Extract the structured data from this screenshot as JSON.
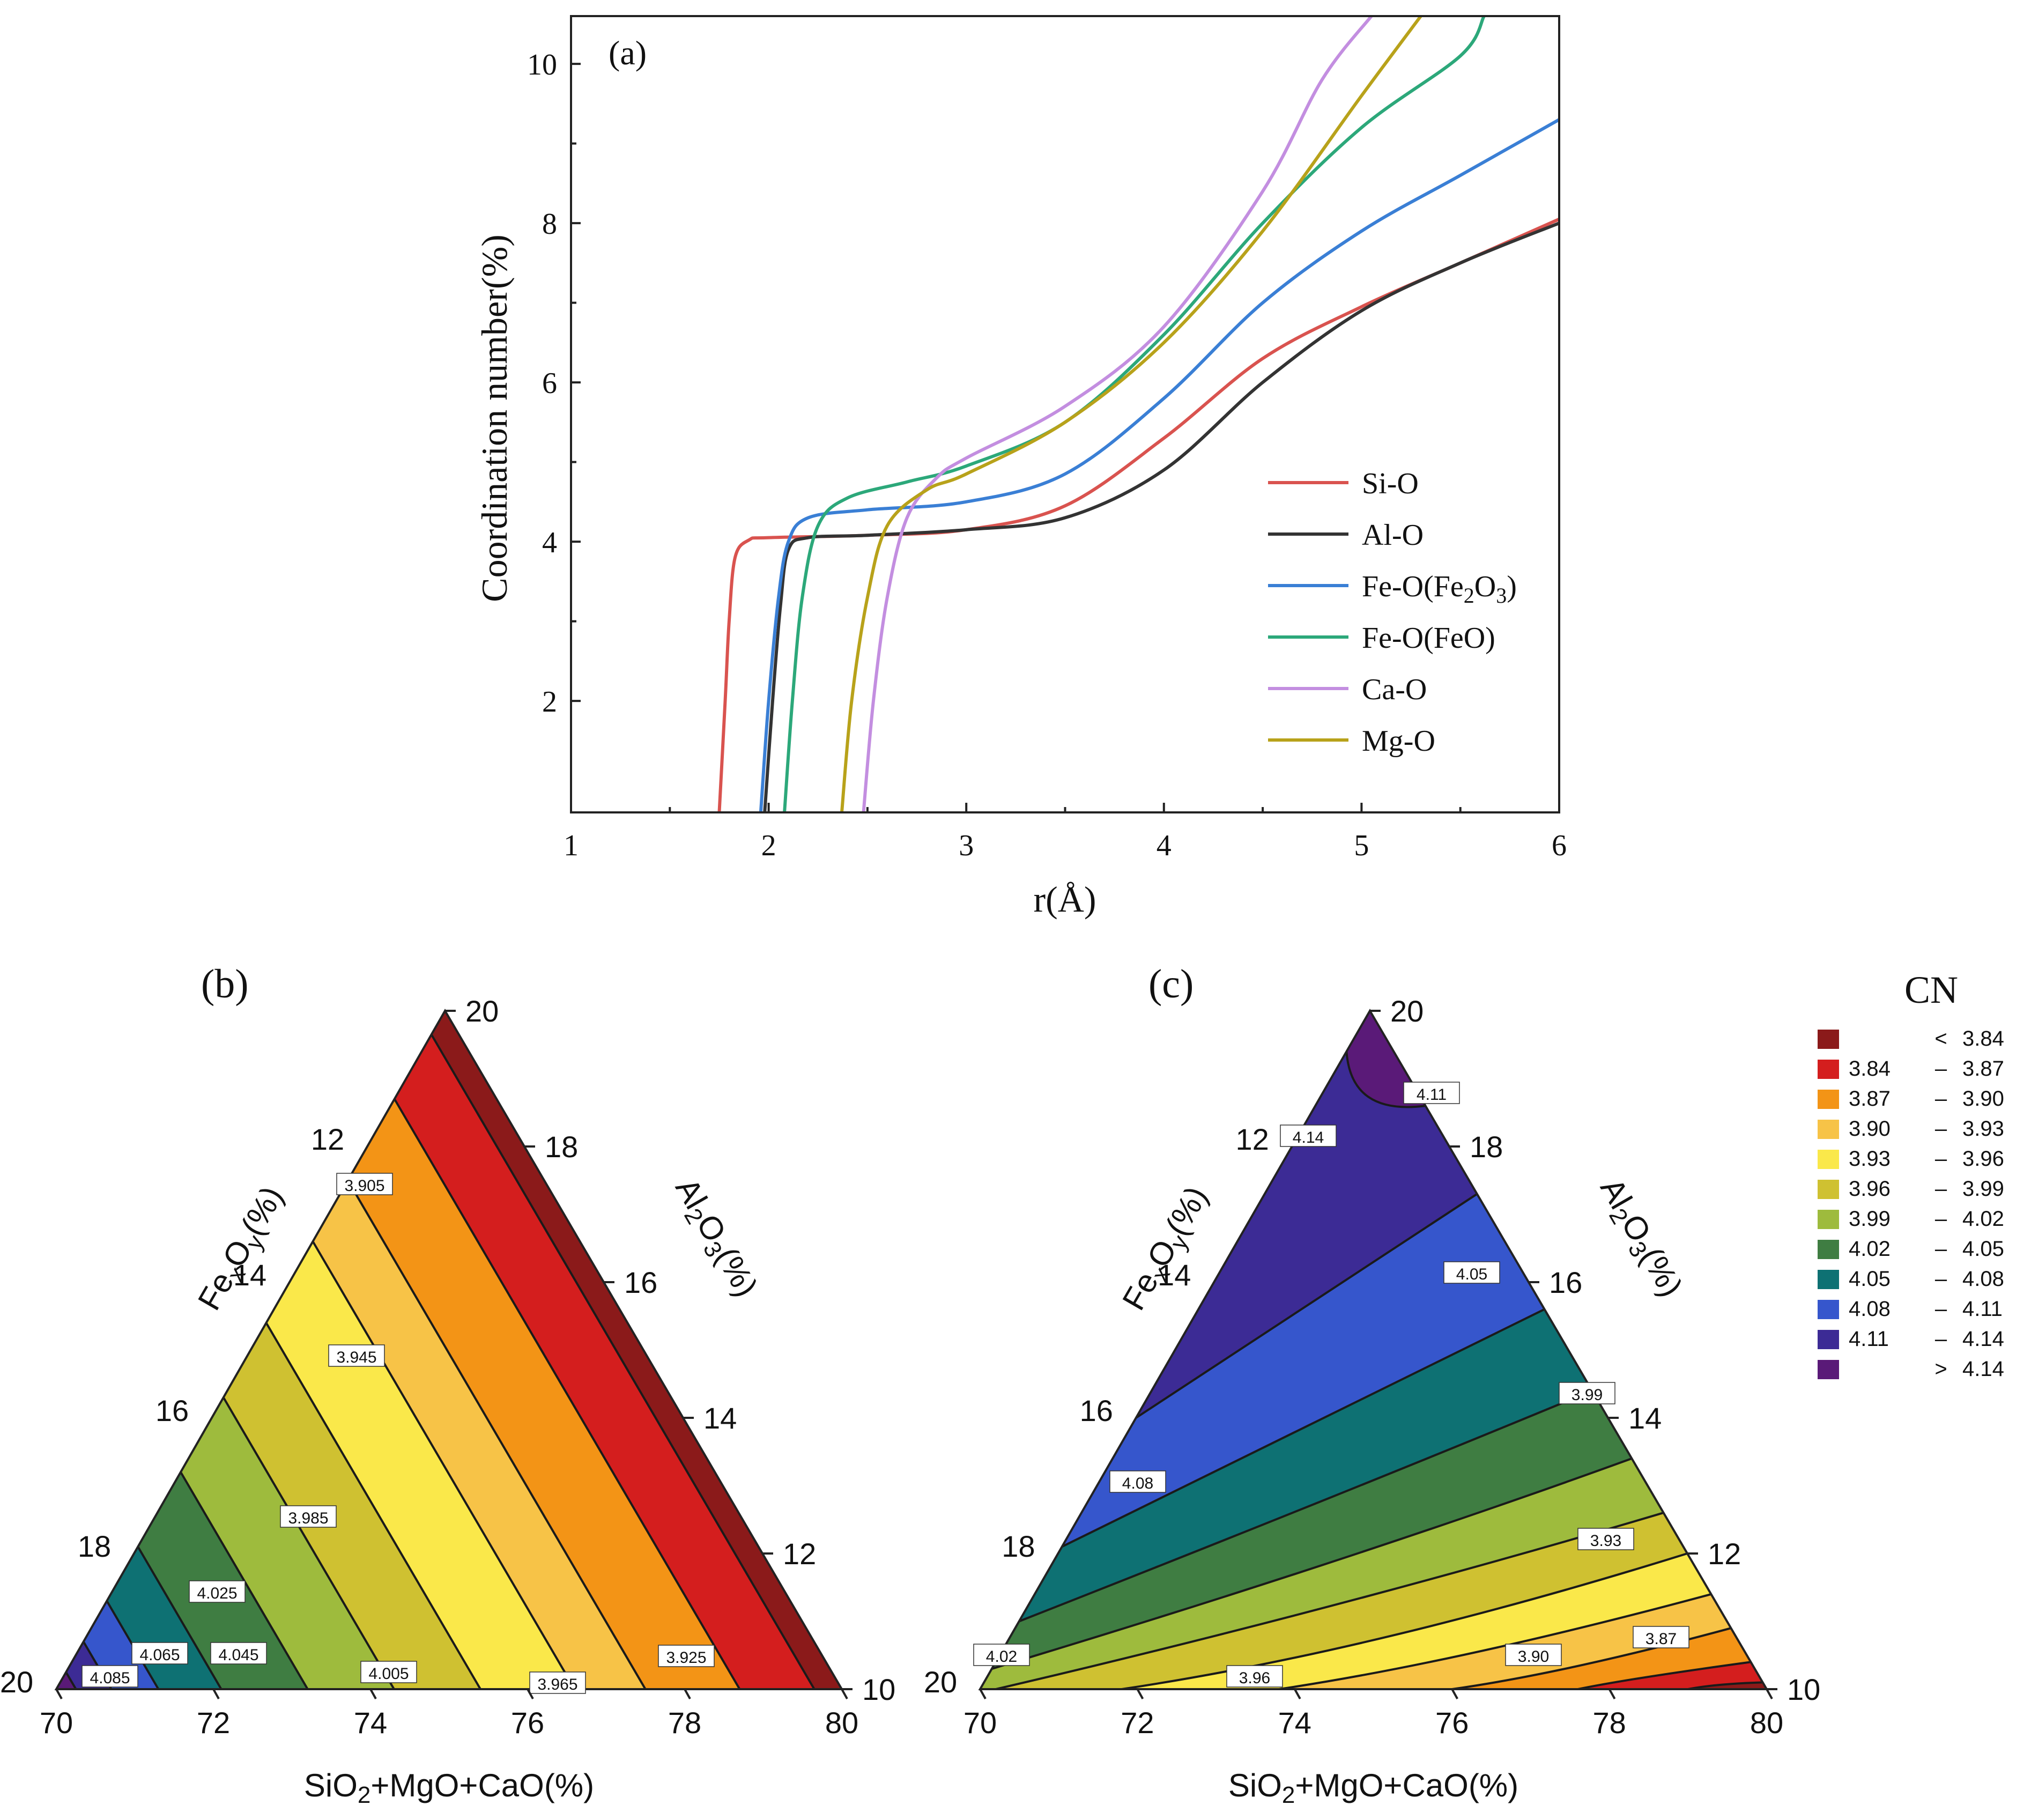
{
  "chart_data": [
    {
      "panel": "(a)",
      "type": "line",
      "xlabel": "r(Å)",
      "ylabel": "Coordination number(%)",
      "xlim": [
        1,
        6
      ],
      "ylim": [
        0.6,
        10.6
      ],
      "xticks": [
        "1",
        "2",
        "3",
        "4",
        "5",
        "6"
      ],
      "yticks": [
        "2",
        "4",
        "6",
        "8",
        "10"
      ],
      "legend_position": "bottom-right",
      "series": [
        {
          "name": "Si-O",
          "legend_label": [
            "Si-O"
          ],
          "color": "#d9534f",
          "points": [
            [
              1.75,
              0.6
            ],
            [
              1.78,
              2.0
            ],
            [
              1.8,
              3.0
            ],
            [
              1.83,
              3.8
            ],
            [
              1.9,
              4.02
            ],
            [
              2.0,
              4.05
            ],
            [
              2.5,
              4.08
            ],
            [
              3.0,
              4.15
            ],
            [
              3.5,
              4.45
            ],
            [
              4.0,
              5.3
            ],
            [
              4.5,
              6.3
            ],
            [
              5.0,
              6.95
            ],
            [
              5.5,
              7.5
            ],
            [
              6.0,
              8.05
            ]
          ]
        },
        {
          "name": "Al-O",
          "legend_label": [
            "Al-O"
          ],
          "color": "#333333",
          "points": [
            [
              1.98,
              0.6
            ],
            [
              2.02,
              2.0
            ],
            [
              2.06,
              3.2
            ],
            [
              2.1,
              3.9
            ],
            [
              2.2,
              4.05
            ],
            [
              2.5,
              4.08
            ],
            [
              3.0,
              4.15
            ],
            [
              3.5,
              4.3
            ],
            [
              4.0,
              4.9
            ],
            [
              4.5,
              6.0
            ],
            [
              5.0,
              6.9
            ],
            [
              5.5,
              7.5
            ],
            [
              6.0,
              8.0
            ]
          ]
        },
        {
          "name": "Fe-O(Fe2O3)",
          "legend_label": [
            "Fe-O(Fe",
            "2",
            "O",
            "3",
            ")"
          ],
          "color": "#3a7fd5",
          "points": [
            [
              1.96,
              0.6
            ],
            [
              2.0,
              2.0
            ],
            [
              2.05,
              3.3
            ],
            [
              2.1,
              4.0
            ],
            [
              2.2,
              4.3
            ],
            [
              2.5,
              4.4
            ],
            [
              3.0,
              4.5
            ],
            [
              3.5,
              4.85
            ],
            [
              4.0,
              5.8
            ],
            [
              4.5,
              7.0
            ],
            [
              5.0,
              7.9
            ],
            [
              5.5,
              8.6
            ],
            [
              6.0,
              9.3
            ]
          ]
        },
        {
          "name": "Fe-O(FeO)",
          "legend_label": [
            "Fe-O(FeO)"
          ],
          "color": "#2ca87a",
          "points": [
            [
              2.08,
              0.6
            ],
            [
              2.12,
              2.0
            ],
            [
              2.17,
              3.3
            ],
            [
              2.25,
              4.2
            ],
            [
              2.4,
              4.55
            ],
            [
              2.7,
              4.75
            ],
            [
              3.0,
              4.95
            ],
            [
              3.5,
              5.5
            ],
            [
              4.0,
              6.6
            ],
            [
              4.5,
              8.0
            ],
            [
              5.0,
              9.2
            ],
            [
              5.5,
              10.1
            ],
            [
              5.62,
              10.6
            ]
          ]
        },
        {
          "name": "Ca-O",
          "legend_label": [
            "Ca-O"
          ],
          "color": "#c38ee0",
          "points": [
            [
              2.48,
              0.6
            ],
            [
              2.53,
              2.0
            ],
            [
              2.6,
              3.3
            ],
            [
              2.7,
              4.3
            ],
            [
              2.85,
              4.8
            ],
            [
              3.0,
              5.05
            ],
            [
              3.5,
              5.7
            ],
            [
              4.0,
              6.7
            ],
            [
              4.5,
              8.4
            ],
            [
              4.8,
              9.8
            ],
            [
              5.05,
              10.6
            ]
          ]
        },
        {
          "name": "Mg-O",
          "legend_label": [
            "Mg-O"
          ],
          "color": "#b8a21a",
          "points": [
            [
              2.37,
              0.6
            ],
            [
              2.42,
              2.0
            ],
            [
              2.5,
              3.3
            ],
            [
              2.6,
              4.2
            ],
            [
              2.8,
              4.65
            ],
            [
              3.0,
              4.85
            ],
            [
              3.5,
              5.5
            ],
            [
              4.0,
              6.5
            ],
            [
              4.5,
              7.9
            ],
            [
              5.0,
              9.6
            ],
            [
              5.3,
              10.6
            ]
          ]
        }
      ]
    },
    {
      "panel": "(b)",
      "type": "ternary-contour",
      "bottom_axis_label": [
        "SiO",
        "2",
        "+MgO+CaO(%)"
      ],
      "left_axis_label": [
        "Fe",
        "x",
        "O",
        "y",
        "(%)"
      ],
      "right_axis_label": [
        "Al",
        "2",
        "O",
        "3",
        "(%)"
      ],
      "bottom_ticks": [
        "70",
        "72",
        "74",
        "76",
        "78",
        "80"
      ],
      "left_ticks": [
        "12",
        "14",
        "16",
        "18",
        "20"
      ],
      "right_ticks": [
        "20",
        "18",
        "16",
        "14",
        "12",
        "10"
      ],
      "band_colors": [
        "#8b1a1a",
        "#d41e1e",
        "#f39416",
        "#f7c347",
        "#fae84a",
        "#cfc131",
        "#9ebb3d",
        "#3f7d42",
        "#0e7173",
        "#3656cc",
        "#3c2b95",
        "#5a1a78"
      ],
      "contour_labels": [
        "3.905",
        "3.945",
        "3.985",
        "4.025",
        "4.065",
        "4.045",
        "4.005",
        "3.965",
        "3.925",
        "4.085"
      ]
    },
    {
      "panel": "(c)",
      "type": "ternary-contour",
      "bottom_axis_label": [
        "SiO",
        "2",
        "+MgO+CaO(%)"
      ],
      "left_axis_label": [
        "Fe",
        "x",
        "O",
        "y",
        "(%)"
      ],
      "right_axis_label": [
        "Al",
        "2",
        "O",
        "3",
        "(%)"
      ],
      "bottom_ticks": [
        "70",
        "72",
        "74",
        "76",
        "78",
        "80"
      ],
      "left_ticks": [
        "12",
        "14",
        "16",
        "18",
        "20"
      ],
      "right_ticks": [
        "20",
        "18",
        "16",
        "14",
        "12",
        "10"
      ],
      "band_colors": [
        "#5a1a78",
        "#3c2b95",
        "#3656cc",
        "#0e7173",
        "#3f7d42",
        "#9ebb3d",
        "#cfc131",
        "#fae84a",
        "#f7c347",
        "#f39416",
        "#d41e1e",
        "#8b1a1a"
      ],
      "contour_labels": [
        "4.14",
        "4.11",
        "4.05",
        "3.99",
        "4.08",
        "3.93",
        "4.02",
        "3.96",
        "3.90",
        "3.87"
      ]
    }
  ],
  "colorbar": {
    "title": "CN",
    "entries": [
      {
        "from": "",
        "sep": "<",
        "to": "3.84",
        "color": "#8b1a1a"
      },
      {
        "from": "3.84",
        "sep": "–",
        "to": "3.87",
        "color": "#d41e1e"
      },
      {
        "from": "3.87",
        "sep": "–",
        "to": "3.90",
        "color": "#f39416"
      },
      {
        "from": "3.90",
        "sep": "–",
        "to": "3.93",
        "color": "#f7c347"
      },
      {
        "from": "3.93",
        "sep": "–",
        "to": "3.96",
        "color": "#fae84a"
      },
      {
        "from": "3.96",
        "sep": "–",
        "to": "3.99",
        "color": "#cfc131"
      },
      {
        "from": "3.99",
        "sep": "–",
        "to": "4.02",
        "color": "#9ebb3d"
      },
      {
        "from": "4.02",
        "sep": "–",
        "to": "4.05",
        "color": "#3f7d42"
      },
      {
        "from": "4.05",
        "sep": "–",
        "to": "4.08",
        "color": "#0e7173"
      },
      {
        "from": "4.08",
        "sep": "–",
        "to": "4.11",
        "color": "#3656cc"
      },
      {
        "from": "4.11",
        "sep": "–",
        "to": "4.14",
        "color": "#3c2b95"
      },
      {
        "from": "",
        "sep": ">",
        "to": "4.14",
        "color": "#5a1a78"
      }
    ]
  }
}
